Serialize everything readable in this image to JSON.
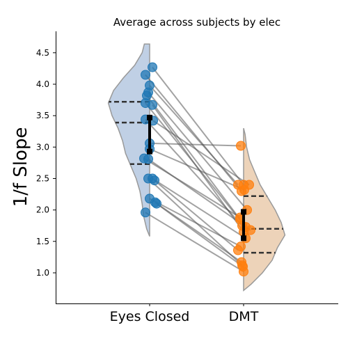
{
  "chart_data": {
    "type": "scatter",
    "title": "Average across subjects by elec",
    "ylabel": "1/f Slope",
    "xlabel": "",
    "categories": [
      "Eyes Closed",
      "DMT"
    ],
    "ylim": [
      0.5,
      4.85
    ],
    "yticks": [
      "1.0",
      "1.5",
      "2.0",
      "2.5",
      "3.0",
      "3.5",
      "4.0",
      "4.5"
    ],
    "grid": false,
    "colors": {
      "eyes_closed": "#1f77b4",
      "dmt": "#ff7f0e",
      "violin_ec": "#b0c4de",
      "violin_dmt": "#e8c8a8",
      "line": "#555555",
      "quartile": "#333333",
      "errorbar": "#000000"
    },
    "violins": [
      {
        "category": "Eyes Closed",
        "side": "left",
        "quartiles": [
          2.73,
          3.39,
          3.72
        ],
        "profile": [
          [
            1.58,
            0.0
          ],
          [
            1.7,
            0.04
          ],
          [
            1.9,
            0.08
          ],
          [
            2.1,
            0.1
          ],
          [
            2.3,
            0.13
          ],
          [
            2.5,
            0.18
          ],
          [
            2.7,
            0.25
          ],
          [
            2.9,
            0.32
          ],
          [
            3.1,
            0.36
          ],
          [
            3.3,
            0.42
          ],
          [
            3.5,
            0.5
          ],
          [
            3.7,
            0.55
          ],
          [
            3.9,
            0.48
          ],
          [
            4.1,
            0.35
          ],
          [
            4.3,
            0.2
          ],
          [
            4.5,
            0.1
          ],
          [
            4.64,
            0.07
          ]
        ]
      },
      {
        "category": "DMT",
        "side": "right",
        "quartiles": [
          1.32,
          1.7,
          2.22
        ],
        "profile": [
          [
            0.72,
            0.0
          ],
          [
            0.82,
            0.1
          ],
          [
            1.0,
            0.25
          ],
          [
            1.2,
            0.38
          ],
          [
            1.4,
            0.45
          ],
          [
            1.6,
            0.55
          ],
          [
            1.8,
            0.5
          ],
          [
            2.0,
            0.42
          ],
          [
            2.2,
            0.32
          ],
          [
            2.4,
            0.22
          ],
          [
            2.6,
            0.15
          ],
          [
            2.8,
            0.08
          ],
          [
            3.0,
            0.04
          ],
          [
            3.2,
            0.02
          ],
          [
            3.3,
            0.0
          ]
        ]
      }
    ],
    "errorbars": [
      {
        "category": "Eyes Closed",
        "mean": 3.2,
        "low": 2.93,
        "high": 3.47
      },
      {
        "category": "DMT",
        "mean": 1.76,
        "low": 1.55,
        "high": 1.97
      }
    ],
    "pairs": [
      {
        "x": [
          -0.06,
          -0.03
        ],
        "y": [
          4.15,
          2.3
        ]
      },
      {
        "x": [
          0.04,
          0.0
        ],
        "y": [
          4.27,
          2.4
        ]
      },
      {
        "x": [
          0.0,
          -0.08
        ],
        "y": [
          3.98,
          2.4
        ]
      },
      {
        "x": [
          -0.02,
          0.05
        ],
        "y": [
          3.87,
          2.0
        ]
      },
      {
        "x": [
          -0.04,
          -0.05
        ],
        "y": [
          3.82,
          1.85
        ]
      },
      {
        "x": [
          -0.06,
          0.03
        ],
        "y": [
          3.7,
          1.73
        ]
      },
      {
        "x": [
          0.04,
          0.0
        ],
        "y": [
          3.67,
          1.65
        ]
      },
      {
        "x": [
          -0.06,
          -0.02
        ],
        "y": [
          3.44,
          1.75
        ]
      },
      {
        "x": [
          0.05,
          0.08
        ],
        "y": [
          3.42,
          2.4
        ]
      },
      {
        "x": [
          0.0,
          -0.04
        ],
        "y": [
          3.06,
          3.02
        ]
      },
      {
        "x": [
          0.0,
          0.01
        ],
        "y": [
          2.97,
          2.32
        ]
      },
      {
        "x": [
          -0.08,
          -0.05
        ],
        "y": [
          2.82,
          1.88
        ]
      },
      {
        "x": [
          -0.02,
          0.1
        ],
        "y": [
          2.81,
          1.68
        ]
      },
      {
        "x": [
          0.04,
          0.03
        ],
        "y": [
          2.5,
          1.55
        ]
      },
      {
        "x": [
          0.07,
          -0.08
        ],
        "y": [
          2.47,
          1.36
        ]
      },
      {
        "x": [
          0.0,
          -0.04
        ],
        "y": [
          2.18,
          1.42
        ]
      },
      {
        "x": [
          0.08,
          -0.03
        ],
        "y": [
          2.12,
          1.17
        ]
      },
      {
        "x": [
          0.1,
          -0.01
        ],
        "y": [
          2.1,
          1.1
        ]
      },
      {
        "x": [
          -0.06,
          0.0
        ],
        "y": [
          1.96,
          1.02
        ]
      },
      {
        "x": [
          -0.02,
          -0.02
        ],
        "y": [
          2.5,
          1.12
        ]
      }
    ]
  }
}
